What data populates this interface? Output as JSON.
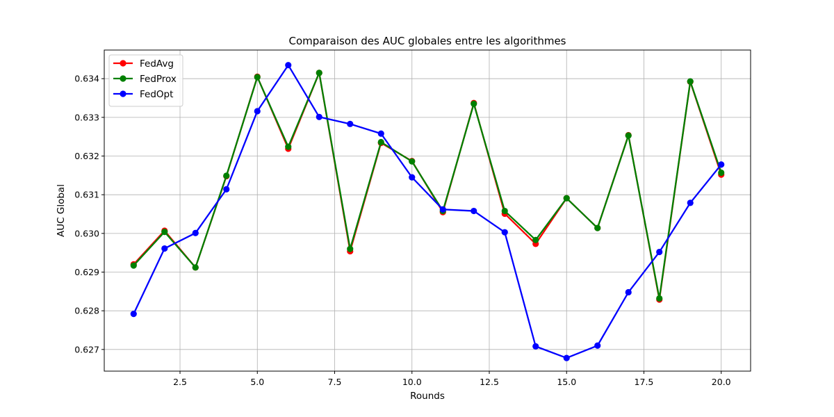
{
  "chart_data": {
    "type": "line",
    "title": "Comparaison des AUC globales entre les algorithmes",
    "xlabel": "Rounds",
    "ylabel": "AUC Global",
    "xlim": [
      0.05,
      20.95
    ],
    "ylim": [
      0.62644,
      0.63474
    ],
    "xticks": [
      2.5,
      5.0,
      7.5,
      10.0,
      12.5,
      15.0,
      17.5,
      20.0
    ],
    "xtick_labels": [
      "2.5",
      "5.0",
      "7.5",
      "10.0",
      "12.5",
      "15.0",
      "17.5",
      "20.0"
    ],
    "yticks": [
      0.627,
      0.628,
      0.629,
      0.63,
      0.631,
      0.632,
      0.633,
      0.634
    ],
    "ytick_labels": [
      "0.627",
      "0.628",
      "0.629",
      "0.630",
      "0.631",
      "0.632",
      "0.633",
      "0.634"
    ],
    "grid": true,
    "legend_position": "top-left",
    "x": [
      1,
      2,
      3,
      4,
      5,
      6,
      7,
      8,
      9,
      10,
      11,
      12,
      13,
      14,
      15,
      16,
      17,
      18,
      19,
      20
    ],
    "series": [
      {
        "name": "FedAvg",
        "color": "#ff0000",
        "values": [
          0.6292,
          0.63007,
          0.62912,
          0.63148,
          0.63405,
          0.63219,
          0.63415,
          0.62954,
          0.63234,
          0.63187,
          0.63055,
          0.63337,
          0.63051,
          0.62973,
          0.63091,
          0.63014,
          0.63254,
          0.62829,
          0.63392,
          0.63152
        ]
      },
      {
        "name": "FedProx",
        "color": "#008000",
        "values": [
          0.62917,
          0.63004,
          0.62912,
          0.63149,
          0.63404,
          0.63224,
          0.63415,
          0.6296,
          0.63236,
          0.63186,
          0.63058,
          0.63335,
          0.63058,
          0.62983,
          0.63091,
          0.63014,
          0.63253,
          0.62832,
          0.63393,
          0.63157
        ]
      },
      {
        "name": "FedOpt",
        "color": "#0000ff",
        "values": [
          0.62792,
          0.62961,
          0.63001,
          0.63114,
          0.63316,
          0.63435,
          0.63301,
          0.63283,
          0.63258,
          0.63145,
          0.63062,
          0.63058,
          0.63003,
          0.62708,
          0.62678,
          0.6271,
          0.62848,
          0.62952,
          0.63079,
          0.63178
        ]
      }
    ]
  }
}
